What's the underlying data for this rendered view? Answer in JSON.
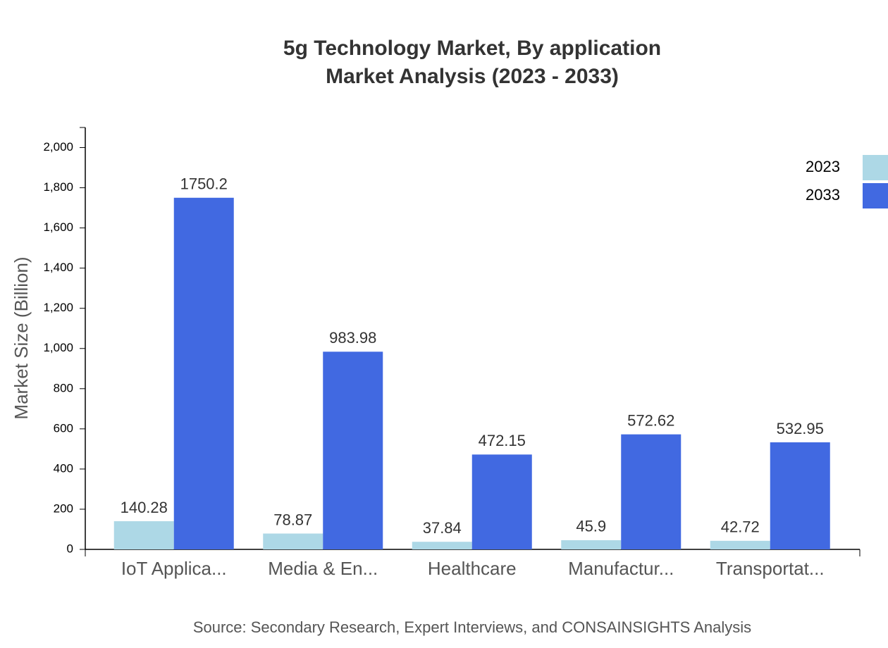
{
  "chart_data": {
    "type": "bar",
    "title": "5g Technology Market, By application",
    "subtitle": "Market Analysis (2023 - 2033)",
    "y_label": "Market Size (Billion)",
    "source": "Source: Secondary Research, Expert Interviews, and CONSAINSIGHTS Analysis",
    "categories": [
      "IoT Applica...",
      "Media & En...",
      "Healthcare",
      "Manufactur...",
      "Transportat..."
    ],
    "series": [
      {
        "name": "2023",
        "color": "#add8e6",
        "values": [
          140.28,
          78.87,
          37.84,
          45.9,
          42.72
        ]
      },
      {
        "name": "2033",
        "color": "#4169e1",
        "values": [
          1750.2,
          983.98,
          472.15,
          572.62,
          532.95
        ]
      }
    ],
    "ylim": [
      0,
      2100
    ],
    "yticks": [
      0,
      200,
      400,
      600,
      800,
      {
        "value": 1000,
        "label": "1,000"
      },
      {
        "value": 1200,
        "label": "1,200"
      },
      {
        "value": 1400,
        "label": "1,400"
      },
      {
        "value": 1600,
        "label": "1,600"
      },
      {
        "value": 1800,
        "label": "1,800"
      },
      {
        "value": 2000,
        "label": "2,000"
      }
    ],
    "legend": "top-right"
  }
}
